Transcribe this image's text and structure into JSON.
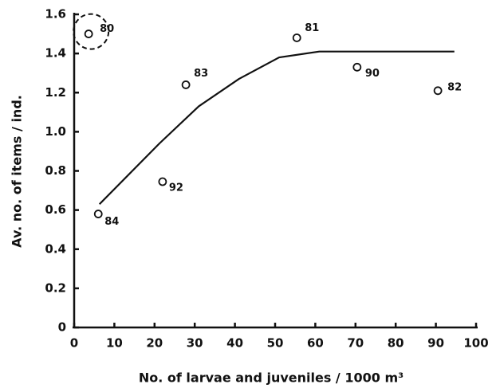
{
  "chart_data": {
    "type": "scatter",
    "x_label": "No. of larvae and juveniles / 1000 m³",
    "y_label": "Av. no. of items / ind.",
    "xlim": [
      0,
      100
    ],
    "xticks": [
      0,
      10,
      20,
      30,
      40,
      50,
      60,
      70,
      80,
      90,
      100
    ],
    "ylim": [
      0,
      1.6
    ],
    "yticks": [
      0,
      0.2,
      0.4,
      0.6,
      0.8,
      {
        "value": 1,
        "label": "1.0"
      },
      1.2,
      1.4,
      1.6
    ],
    "series": [
      {
        "type": "scatter",
        "color": "#111",
        "x": [
          3.6,
          55.4,
          27.8,
          70.4,
          90.5,
          22,
          6
        ],
        "values": [
          1.5,
          1.48,
          1.24,
          1.33,
          1.21,
          0.745,
          0.58
        ],
        "labels": [
          "80",
          "81",
          "83",
          "90",
          "82",
          "92",
          "84"
        ]
      },
      {
        "type": "line",
        "color": "#111",
        "x": [
          6.3,
          21.2,
          31,
          41,
          51,
          61,
          75,
          94.6
        ],
        "values": [
          0.63,
          0.94,
          1.13,
          1.27,
          1.38,
          1.41,
          1.41,
          1.41
        ]
      }
    ]
  }
}
